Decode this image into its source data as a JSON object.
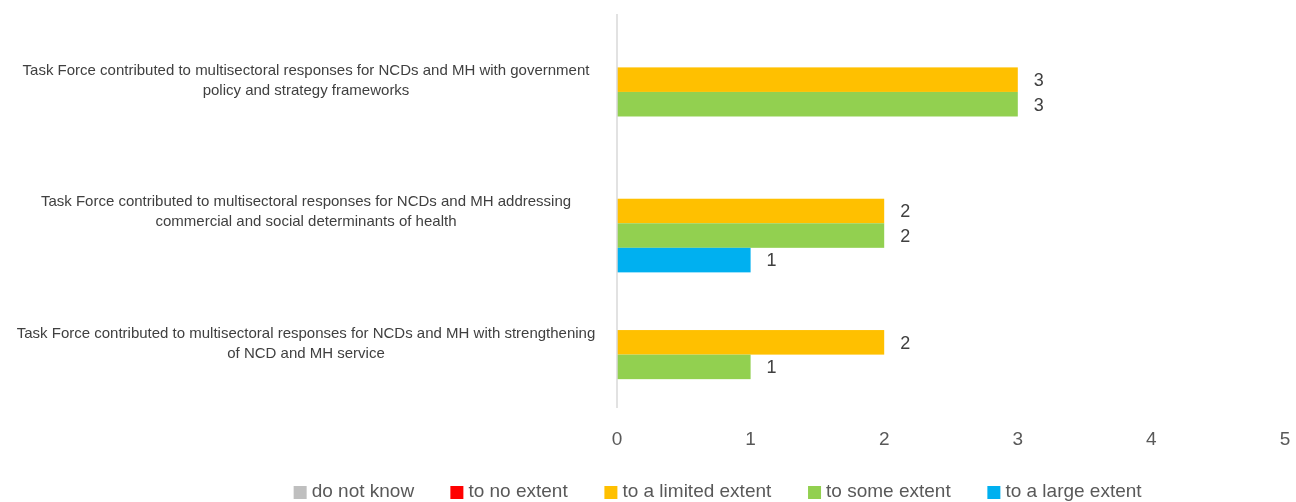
{
  "chart_data": {
    "type": "bar",
    "orientation": "horizontal",
    "categories": [
      "Task Force contributed to multisectoral responses for NCDs and MH with government policy and strategy frameworks",
      "Task Force contributed to multisectoral responses for NCDs and MH addressing commercial and social determinants of health",
      "Task Force contributed to multisectoral responses for NCDs and MH with strengthening of NCD and MH service"
    ],
    "series": [
      {
        "name": "do not know",
        "color": "#bfbfbf",
        "values": [
          null,
          null,
          null
        ]
      },
      {
        "name": "to no extent",
        "color": "#ff0000",
        "values": [
          null,
          null,
          null
        ]
      },
      {
        "name": "to a limited extent",
        "color": "#ffc000",
        "values": [
          3,
          2,
          2
        ]
      },
      {
        "name": "to some extent",
        "color": "#92d050",
        "values": [
          3,
          2,
          1
        ]
      },
      {
        "name": "to a large extent",
        "color": "#00b0f0",
        "values": [
          null,
          1,
          null
        ]
      }
    ],
    "xlim": [
      0,
      5
    ],
    "xticks": [
      0,
      1,
      2,
      3,
      4,
      5
    ],
    "grid": false,
    "legend": "bottom",
    "data_labels": true
  }
}
